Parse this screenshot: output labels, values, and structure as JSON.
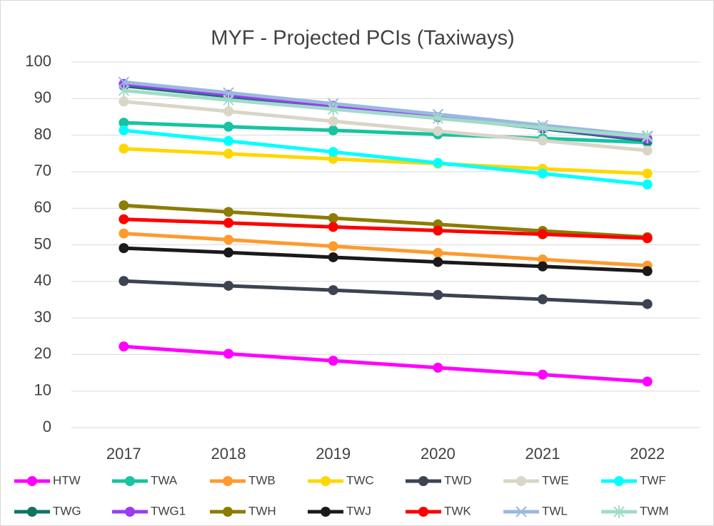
{
  "chart_data": {
    "type": "line",
    "title": "MYF - Projected PCIs (Taxiways)",
    "categories": [
      "2017",
      "2018",
      "2019",
      "2020",
      "2021",
      "2022"
    ],
    "ylim": [
      0,
      100
    ],
    "yticks": [
      0,
      10,
      20,
      30,
      40,
      50,
      60,
      70,
      80,
      90,
      100
    ],
    "grid": true,
    "legend": "bottom",
    "series": [
      {
        "name": "HTW",
        "color": "#ff00ff",
        "marker": "circle",
        "values": [
          22.2,
          20.2,
          18.3,
          16.4,
          14.5,
          12.6
        ]
      },
      {
        "name": "TWA",
        "color": "#17c3a0",
        "marker": "circle",
        "values": [
          83.4,
          82.3,
          81.3,
          80.2,
          79.1,
          78.0
        ]
      },
      {
        "name": "TWB",
        "color": "#ff9a2e",
        "marker": "circle",
        "values": [
          53.1,
          51.4,
          49.6,
          47.8,
          46.0,
          44.3
        ]
      },
      {
        "name": "TWC",
        "color": "#ffd700",
        "marker": "circle",
        "values": [
          76.3,
          74.9,
          73.5,
          72.2,
          70.8,
          69.5
        ]
      },
      {
        "name": "TWD",
        "color": "#3b4450",
        "marker": "circle",
        "values": [
          40.1,
          38.8,
          37.6,
          36.3,
          35.1,
          33.8
        ]
      },
      {
        "name": "TWE",
        "color": "#d9d6c8",
        "marker": "circle",
        "values": [
          89.2,
          86.5,
          83.8,
          81.1,
          78.5,
          75.8
        ]
      },
      {
        "name": "TWF",
        "color": "#00ffff",
        "marker": "circle",
        "values": [
          81.3,
          78.4,
          75.4,
          72.4,
          69.5,
          66.5
        ]
      },
      {
        "name": "TWG",
        "color": "#0e7466",
        "marker": "circle",
        "values": [
          93.5,
          90.6,
          87.8,
          84.9,
          81.8,
          78.5
        ]
      },
      {
        "name": "TWG1",
        "color": "#9b3cf0",
        "marker": "circle",
        "values": [
          94.0,
          91.0,
          88.0,
          85.0,
          82.0,
          79.0
        ]
      },
      {
        "name": "TWH",
        "color": "#8b7d00",
        "marker": "circle",
        "values": [
          60.8,
          59.0,
          57.3,
          55.6,
          53.8,
          52.1
        ]
      },
      {
        "name": "TWJ",
        "color": "#1a1a1a",
        "marker": "circle",
        "values": [
          49.1,
          47.9,
          46.6,
          45.3,
          44.1,
          42.8
        ]
      },
      {
        "name": "TWK",
        "color": "#ff0000",
        "marker": "circle",
        "values": [
          57.0,
          56.0,
          54.9,
          53.9,
          52.9,
          51.8
        ]
      },
      {
        "name": "TWL",
        "color": "#9ab8e0",
        "marker": "x",
        "values": [
          94.5,
          91.6,
          88.6,
          85.7,
          82.7,
          79.8
        ]
      },
      {
        "name": "TWM",
        "color": "#a0dcc8",
        "marker": "star",
        "values": [
          92.2,
          89.6,
          87.1,
          84.6,
          82.0,
          79.5
        ]
      }
    ]
  }
}
